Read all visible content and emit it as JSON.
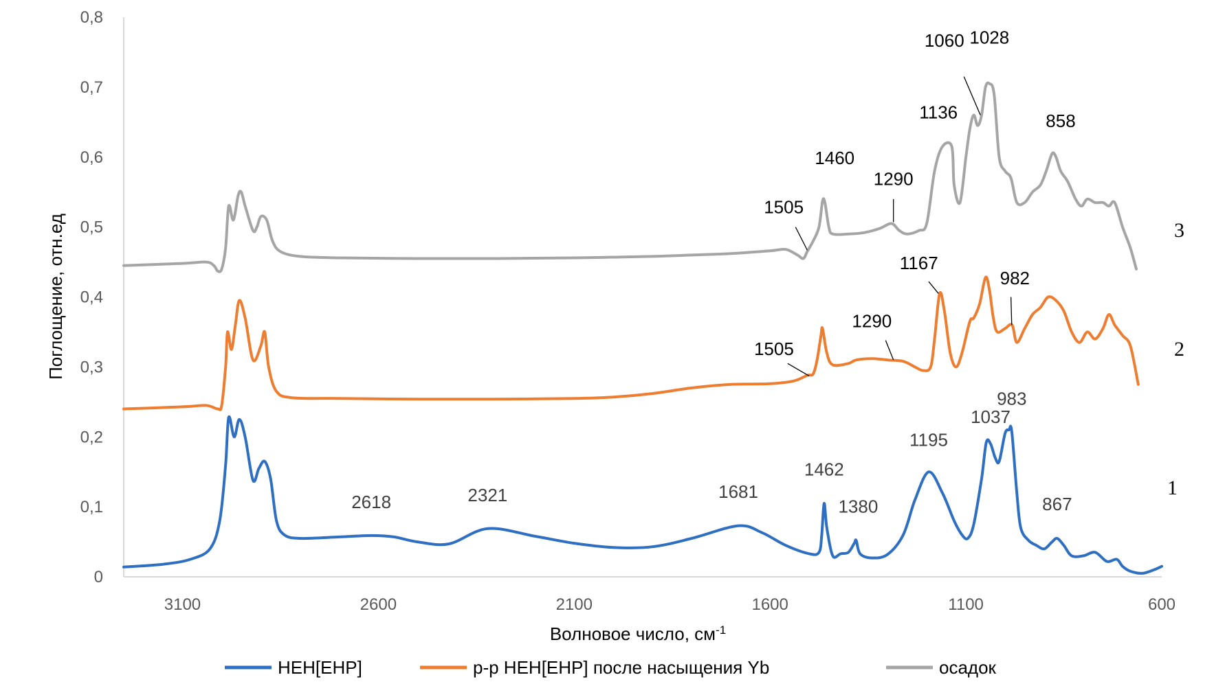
{
  "chart_data": {
    "type": "line",
    "xlabel": "Волновое число, см",
    "xlabel_sup": "-1",
    "ylabel": "Поглощение, отн.ед",
    "xlim": [
      3250,
      600
    ],
    "x_reversed": true,
    "ylim": [
      0,
      0.8
    ],
    "x_ticks": [
      3100,
      2600,
      2100,
      1600,
      1100,
      600
    ],
    "x_tick_labels": [
      "3100",
      "2600",
      "2100",
      "1600",
      "1100",
      "600"
    ],
    "y_ticks": [
      0,
      0.1,
      0.2,
      0.3,
      0.4,
      0.5,
      0.6,
      0.7,
      0.8
    ],
    "y_tick_labels": [
      "0",
      "0,1",
      "0,2",
      "0,3",
      "0,4",
      "0,5",
      "0,6",
      "0,7",
      "0,8"
    ],
    "grid": false,
    "legend_position": "bottom",
    "series": [
      {
        "name": "НЕН[ЕНР]",
        "color": "#2e6fc2",
        "curve_label": "1",
        "points": [
          [
            3250,
            0.014
          ],
          [
            3150,
            0.018
          ],
          [
            3080,
            0.025
          ],
          [
            3030,
            0.04
          ],
          [
            3005,
            0.08
          ],
          [
            2990,
            0.16
          ],
          [
            2982,
            0.228
          ],
          [
            2968,
            0.2
          ],
          [
            2955,
            0.225
          ],
          [
            2940,
            0.2
          ],
          [
            2920,
            0.138
          ],
          [
            2905,
            0.155
          ],
          [
            2890,
            0.165
          ],
          [
            2875,
            0.14
          ],
          [
            2860,
            0.08
          ],
          [
            2840,
            0.06
          ],
          [
            2800,
            0.055
          ],
          [
            2700,
            0.057
          ],
          [
            2618,
            0.059
          ],
          [
            2560,
            0.057
          ],
          [
            2500,
            0.05
          ],
          [
            2420,
            0.047
          ],
          [
            2321,
            0.069
          ],
          [
            2200,
            0.058
          ],
          [
            2100,
            0.048
          ],
          [
            2000,
            0.042
          ],
          [
            1900,
            0.043
          ],
          [
            1800,
            0.055
          ],
          [
            1681,
            0.073
          ],
          [
            1620,
            0.063
          ],
          [
            1560,
            0.045
          ],
          [
            1500,
            0.033
          ],
          [
            1475,
            0.035
          ],
          [
            1468,
            0.06
          ],
          [
            1462,
            0.105
          ],
          [
            1455,
            0.07
          ],
          [
            1440,
            0.03
          ],
          [
            1420,
            0.033
          ],
          [
            1400,
            0.035
          ],
          [
            1385,
            0.048
          ],
          [
            1380,
            0.052
          ],
          [
            1370,
            0.033
          ],
          [
            1340,
            0.027
          ],
          [
            1300,
            0.032
          ],
          [
            1260,
            0.06
          ],
          [
            1230,
            0.11
          ],
          [
            1195,
            0.15
          ],
          [
            1160,
            0.12
          ],
          [
            1130,
            0.08
          ],
          [
            1110,
            0.06
          ],
          [
            1095,
            0.055
          ],
          [
            1080,
            0.075
          ],
          [
            1060,
            0.14
          ],
          [
            1048,
            0.192
          ],
          [
            1037,
            0.19
          ],
          [
            1025,
            0.17
          ],
          [
            1015,
            0.165
          ],
          [
            1000,
            0.205
          ],
          [
            990,
            0.21
          ],
          [
            983,
            0.208
          ],
          [
            970,
            0.12
          ],
          [
            960,
            0.07
          ],
          [
            940,
            0.052
          ],
          [
            920,
            0.045
          ],
          [
            900,
            0.04
          ],
          [
            880,
            0.05
          ],
          [
            867,
            0.055
          ],
          [
            850,
            0.045
          ],
          [
            830,
            0.03
          ],
          [
            800,
            0.03
          ],
          [
            770,
            0.035
          ],
          [
            740,
            0.022
          ],
          [
            715,
            0.025
          ],
          [
            700,
            0.015
          ],
          [
            680,
            0.008
          ],
          [
            650,
            0.005
          ],
          [
            620,
            0.01
          ],
          [
            600,
            0.015
          ]
        ]
      },
      {
        "name": "р-р НЕН[ЕНР] после насыщения Yb",
        "color": "#ed7d31",
        "curve_label": "2",
        "points": [
          [
            3250,
            0.24
          ],
          [
            3100,
            0.243
          ],
          [
            3040,
            0.245
          ],
          [
            3010,
            0.24
          ],
          [
            3000,
            0.245
          ],
          [
            2990,
            0.3
          ],
          [
            2985,
            0.35
          ],
          [
            2975,
            0.325
          ],
          [
            2965,
            0.36
          ],
          [
            2955,
            0.395
          ],
          [
            2940,
            0.37
          ],
          [
            2920,
            0.31
          ],
          [
            2900,
            0.33
          ],
          [
            2890,
            0.35
          ],
          [
            2880,
            0.3
          ],
          [
            2860,
            0.265
          ],
          [
            2820,
            0.256
          ],
          [
            2700,
            0.255
          ],
          [
            2500,
            0.254
          ],
          [
            2300,
            0.254
          ],
          [
            2100,
            0.255
          ],
          [
            2000,
            0.257
          ],
          [
            1900,
            0.262
          ],
          [
            1800,
            0.27
          ],
          [
            1700,
            0.275
          ],
          [
            1600,
            0.276
          ],
          [
            1540,
            0.28
          ],
          [
            1505,
            0.288
          ],
          [
            1490,
            0.29
          ],
          [
            1480,
            0.31
          ],
          [
            1470,
            0.345
          ],
          [
            1466,
            0.355
          ],
          [
            1455,
            0.32
          ],
          [
            1440,
            0.303
          ],
          [
            1400,
            0.305
          ],
          [
            1380,
            0.31
          ],
          [
            1340,
            0.312
          ],
          [
            1300,
            0.31
          ],
          [
            1260,
            0.308
          ],
          [
            1230,
            0.3
          ],
          [
            1210,
            0.295
          ],
          [
            1190,
            0.3
          ],
          [
            1180,
            0.34
          ],
          [
            1167,
            0.405
          ],
          [
            1155,
            0.38
          ],
          [
            1140,
            0.32
          ],
          [
            1125,
            0.3
          ],
          [
            1110,
            0.32
          ],
          [
            1090,
            0.365
          ],
          [
            1080,
            0.37
          ],
          [
            1065,
            0.39
          ],
          [
            1050,
            0.428
          ],
          [
            1040,
            0.41
          ],
          [
            1030,
            0.37
          ],
          [
            1020,
            0.35
          ],
          [
            1000,
            0.355
          ],
          [
            982,
            0.36
          ],
          [
            970,
            0.335
          ],
          [
            950,
            0.355
          ],
          [
            930,
            0.375
          ],
          [
            910,
            0.385
          ],
          [
            890,
            0.4
          ],
          [
            870,
            0.395
          ],
          [
            850,
            0.38
          ],
          [
            830,
            0.35
          ],
          [
            810,
            0.335
          ],
          [
            790,
            0.35
          ],
          [
            770,
            0.34
          ],
          [
            750,
            0.355
          ],
          [
            735,
            0.375
          ],
          [
            720,
            0.36
          ],
          [
            700,
            0.345
          ],
          [
            680,
            0.33
          ],
          [
            660,
            0.275
          ]
        ]
      },
      {
        "name": "осадок",
        "color": "#a5a5a5",
        "curve_label": "3",
        "points": [
          [
            3250,
            0.445
          ],
          [
            3100,
            0.448
          ],
          [
            3040,
            0.45
          ],
          [
            3020,
            0.445
          ],
          [
            3010,
            0.437
          ],
          [
            3000,
            0.44
          ],
          [
            2990,
            0.47
          ],
          [
            2982,
            0.53
          ],
          [
            2970,
            0.51
          ],
          [
            2958,
            0.545
          ],
          [
            2950,
            0.55
          ],
          [
            2940,
            0.53
          ],
          [
            2920,
            0.495
          ],
          [
            2910,
            0.5
          ],
          [
            2900,
            0.515
          ],
          [
            2885,
            0.51
          ],
          [
            2870,
            0.48
          ],
          [
            2850,
            0.465
          ],
          [
            2800,
            0.458
          ],
          [
            2700,
            0.456
          ],
          [
            2500,
            0.455
          ],
          [
            2300,
            0.455
          ],
          [
            2100,
            0.456
          ],
          [
            1900,
            0.458
          ],
          [
            1800,
            0.46
          ],
          [
            1700,
            0.462
          ],
          [
            1600,
            0.466
          ],
          [
            1560,
            0.468
          ],
          [
            1530,
            0.46
          ],
          [
            1515,
            0.455
          ],
          [
            1505,
            0.465
          ],
          [
            1490,
            0.48
          ],
          [
            1475,
            0.5
          ],
          [
            1466,
            0.537
          ],
          [
            1460,
            0.535
          ],
          [
            1450,
            0.5
          ],
          [
            1440,
            0.49
          ],
          [
            1400,
            0.49
          ],
          [
            1360,
            0.492
          ],
          [
            1320,
            0.498
          ],
          [
            1290,
            0.505
          ],
          [
            1270,
            0.495
          ],
          [
            1250,
            0.49
          ],
          [
            1220,
            0.495
          ],
          [
            1200,
            0.505
          ],
          [
            1180,
            0.58
          ],
          [
            1160,
            0.615
          ],
          [
            1136,
            0.615
          ],
          [
            1130,
            0.56
          ],
          [
            1115,
            0.535
          ],
          [
            1100,
            0.6
          ],
          [
            1090,
            0.64
          ],
          [
            1080,
            0.66
          ],
          [
            1070,
            0.645
          ],
          [
            1060,
            0.66
          ],
          [
            1050,
            0.7
          ],
          [
            1040,
            0.705
          ],
          [
            1028,
            0.69
          ],
          [
            1015,
            0.6
          ],
          [
            1000,
            0.58
          ],
          [
            985,
            0.57
          ],
          [
            970,
            0.535
          ],
          [
            950,
            0.535
          ],
          [
            930,
            0.55
          ],
          [
            910,
            0.56
          ],
          [
            895,
            0.58
          ],
          [
            880,
            0.605
          ],
          [
            870,
            0.6
          ],
          [
            858,
            0.58
          ],
          [
            840,
            0.565
          ],
          [
            820,
            0.54
          ],
          [
            805,
            0.53
          ],
          [
            790,
            0.54
          ],
          [
            770,
            0.535
          ],
          [
            750,
            0.535
          ],
          [
            735,
            0.53
          ],
          [
            720,
            0.535
          ],
          [
            700,
            0.5
          ],
          [
            680,
            0.47
          ],
          [
            665,
            0.44
          ]
        ]
      }
    ],
    "annotations": [
      {
        "text": "2618",
        "x": 2618,
        "y": 0.098,
        "color": "#404040"
      },
      {
        "text": "2321",
        "x": 2321,
        "y": 0.108,
        "color": "#404040"
      },
      {
        "text": "1681",
        "x": 1681,
        "y": 0.113,
        "color": "#404040"
      },
      {
        "text": "1462",
        "x": 1462,
        "y": 0.145,
        "color": "#404040"
      },
      {
        "text": "1380",
        "x": 1375,
        "y": 0.092,
        "color": "#404040"
      },
      {
        "text": "1195",
        "x": 1195,
        "y": 0.187,
        "color": "#404040"
      },
      {
        "text": "1037",
        "x": 1037,
        "y": 0.22,
        "color": "#404040"
      },
      {
        "text": "983",
        "x": 983,
        "y": 0.246,
        "color": "#404040"
      },
      {
        "text": "867",
        "x": 867,
        "y": 0.095,
        "color": "#404040"
      },
      {
        "text": "1505",
        "x": 1590,
        "y": 0.317,
        "color": "#000000"
      },
      {
        "text": "1290",
        "x": 1340,
        "y": 0.357,
        "color": "#000000"
      },
      {
        "text": "1167",
        "x": 1220,
        "y": 0.44,
        "color": "#000000"
      },
      {
        "text": "982",
        "x": 975,
        "y": 0.418,
        "color": "#000000"
      },
      {
        "text": "1505",
        "x": 1565,
        "y": 0.52,
        "color": "#000000"
      },
      {
        "text": "1460",
        "x": 1435,
        "y": 0.59,
        "color": "#000000"
      },
      {
        "text": "1290",
        "x": 1285,
        "y": 0.56,
        "color": "#000000"
      },
      {
        "text": "1136",
        "x": 1170,
        "y": 0.655,
        "color": "#000000"
      },
      {
        "text": "1060",
        "x": 1155,
        "y": 0.758,
        "color": "#000000"
      },
      {
        "text": "1028",
        "x": 1040,
        "y": 0.762,
        "color": "#000000"
      },
      {
        "text": "858",
        "x": 858,
        "y": 0.643,
        "color": "#000000"
      }
    ],
    "leader_lines": [
      {
        "from": [
          1555,
          0.305
        ],
        "to": [
          1500,
          0.287
        ]
      },
      {
        "from": [
          1305,
          0.338
        ],
        "to": [
          1285,
          0.31
        ]
      },
      {
        "from": [
          1195,
          0.422
        ],
        "to": [
          1170,
          0.405
        ]
      },
      {
        "from": [
          985,
          0.4
        ],
        "to": [
          983,
          0.36
        ]
      },
      {
        "from": [
          1535,
          0.5
        ],
        "to": [
          1505,
          0.467
        ]
      },
      {
        "from": [
          1285,
          0.54
        ],
        "to": [
          1285,
          0.507
        ]
      },
      {
        "from": [
          1105,
          0.715
        ],
        "to": [
          1063,
          0.66
        ]
      }
    ]
  }
}
